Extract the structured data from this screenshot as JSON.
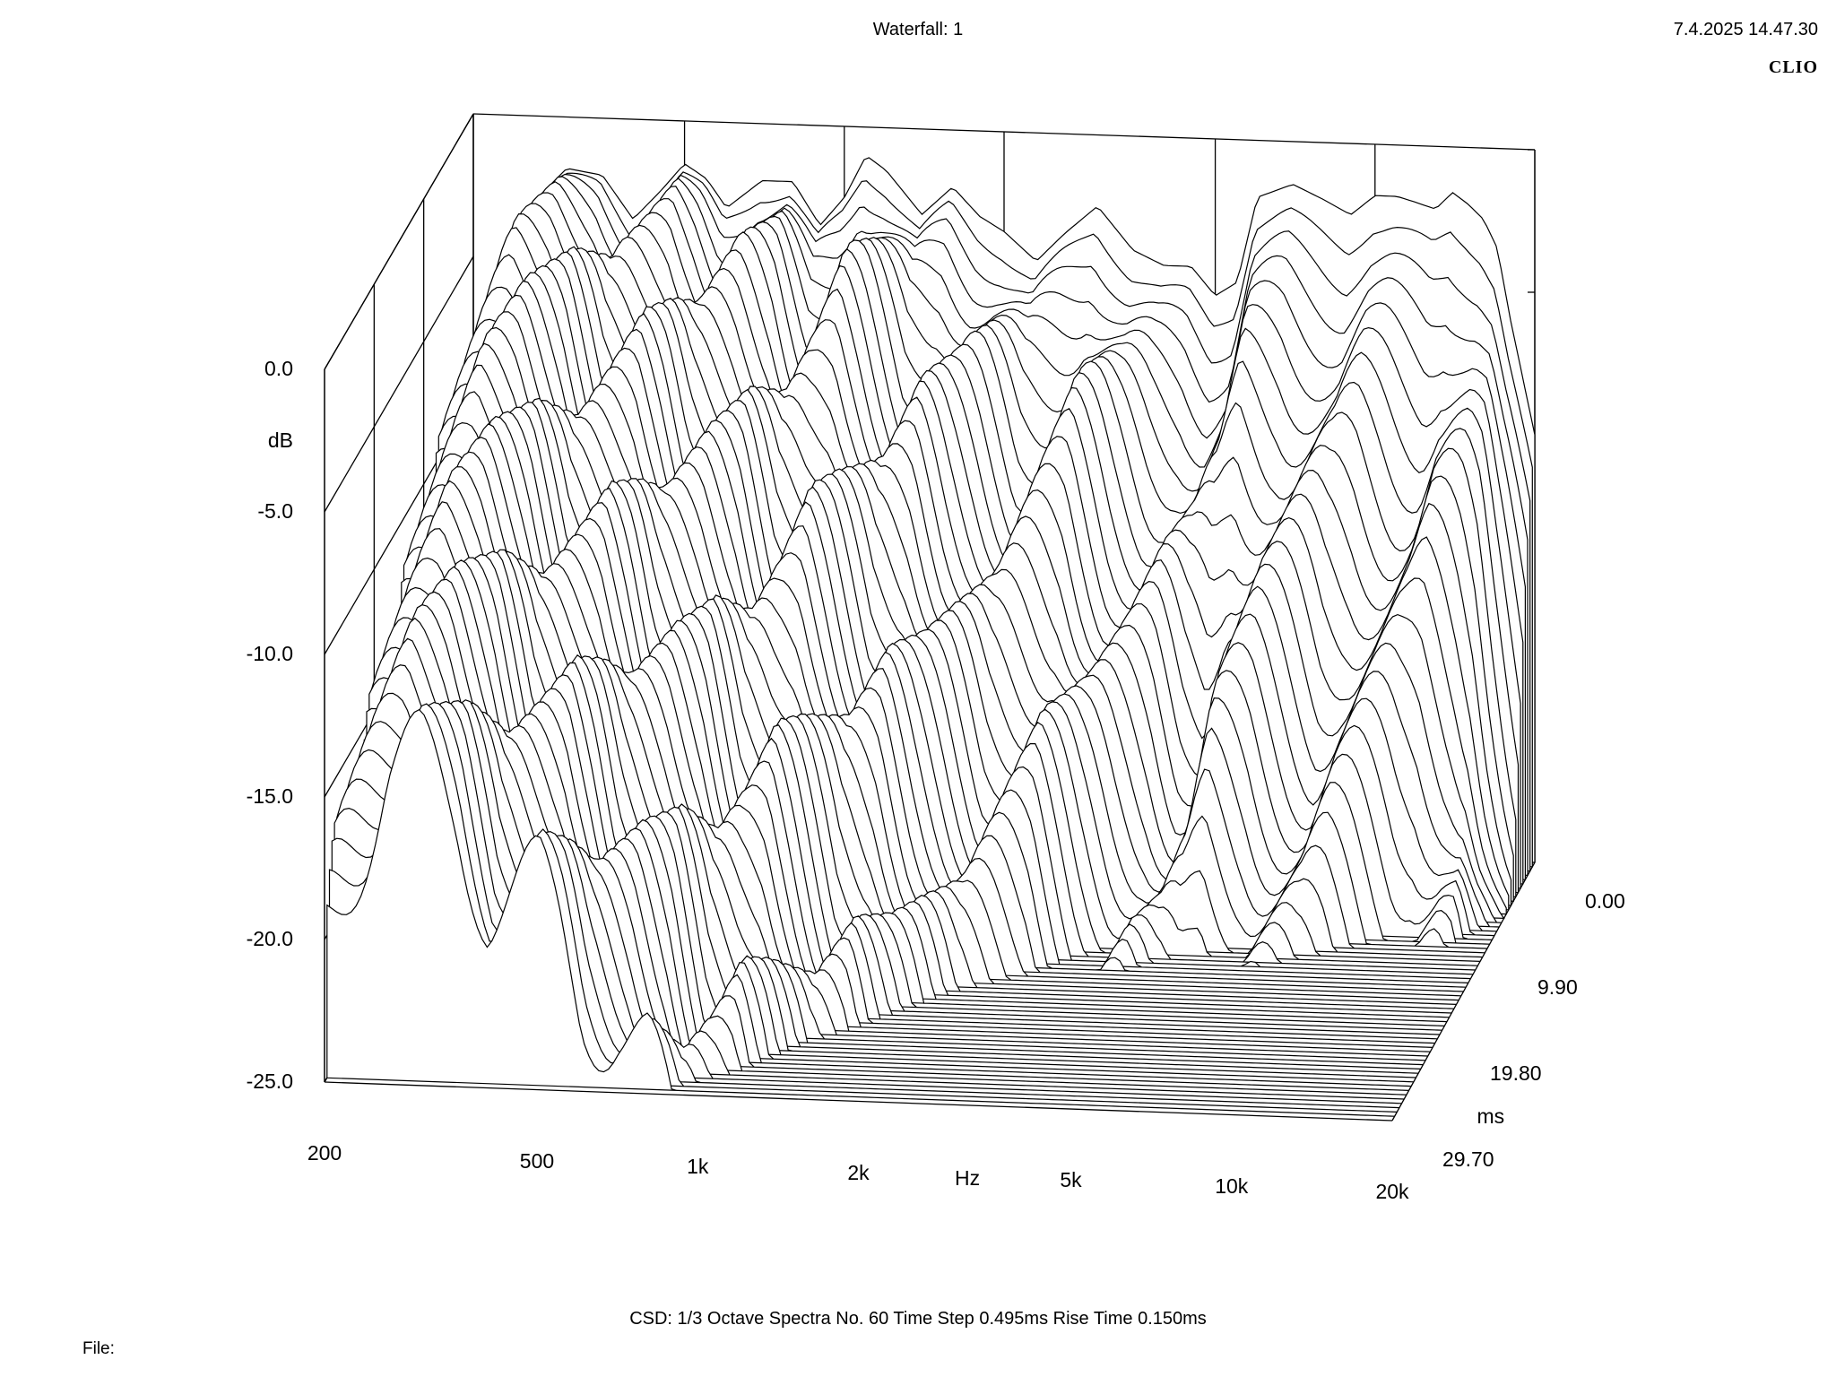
{
  "header": {
    "title": "Waterfall: 1",
    "datetime": "7.4.2025 14.47.30",
    "brand": "CLIO"
  },
  "footer": {
    "info": "CSD:   1/3 Octave   Spectra No. 60   Time Step 0.495ms   Rise Time 0.150ms",
    "file_label": "File:"
  },
  "chart_data": {
    "type": "waterfall",
    "title": "Waterfall: 1",
    "xlabel": "Hz",
    "ylabel": "dB",
    "zlabel": "ms",
    "x_scale": "log",
    "xlim": [
      200,
      20000
    ],
    "ylim": [
      -25.0,
      0.0
    ],
    "zlim": [
      0.0,
      29.7
    ],
    "x_ticks": [
      "200",
      "500",
      "1k",
      "2k",
      "5k",
      "10k",
      "20k"
    ],
    "x_tick_values": [
      200,
      500,
      1000,
      2000,
      5000,
      10000,
      20000
    ],
    "y_ticks": [
      "0.0",
      "-5.0",
      "-10.0",
      "-15.0",
      "-20.0",
      "-25.0"
    ],
    "y_tick_values": [
      0,
      -5,
      -10,
      -15,
      -20,
      -25
    ],
    "z_ticks": [
      "0.00",
      "9.90",
      "19.80",
      "29.70"
    ],
    "z_tick_values": [
      0.0,
      9.9,
      19.8,
      29.7
    ],
    "spectra_count": 60,
    "time_step_ms": 0.495,
    "grid": true,
    "first_spectrum": {
      "freq_hz": [
        200,
        260,
        300,
        350,
        400,
        450,
        500,
        550,
        600,
        700,
        800,
        900,
        1000,
        1100,
        1200,
        1400,
        1600,
        1800,
        2000,
        2300,
        2600,
        3000,
        3500,
        4000,
        4500,
        5000,
        5500,
        6000,
        7000,
        8000,
        9000,
        10000,
        11000,
        12000,
        13000,
        14000,
        15000,
        16000,
        17000,
        18000,
        20000
      ],
      "level_db": [
        -9.0,
        -3.0,
        -1.8,
        -2.0,
        -3.5,
        -2.5,
        -1.5,
        -2.0,
        -3.0,
        -2.0,
        -2.0,
        -3.5,
        -2.5,
        -1.0,
        -1.5,
        -3.0,
        -2.0,
        -3.0,
        -3.5,
        -4.5,
        -3.5,
        -2.5,
        -4.0,
        -4.5,
        -4.5,
        -5.5,
        -5.0,
        -2.0,
        -1.5,
        -2.0,
        -2.5,
        -1.8,
        -1.8,
        -2.0,
        -2.2,
        -1.6,
        -2.0,
        -2.5,
        -3.5,
        -6.0,
        -10.0
      ]
    },
    "decay_trend": "high frequencies decay faster; low-frequency ridges persist beyond 20 ms"
  }
}
